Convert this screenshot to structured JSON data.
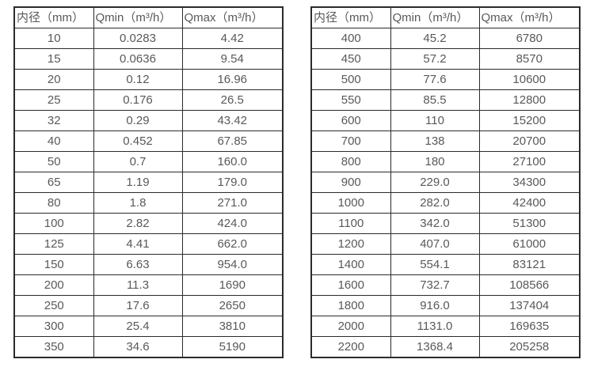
{
  "colors": {
    "background": "#ffffff",
    "border": "#2b2b2b",
    "text": "#595959"
  },
  "chart_data": [
    {
      "type": "table",
      "title": "",
      "columns": [
        "内径（mm）",
        "Qmin（m³/h）",
        "Qmax（m³/h）"
      ],
      "rows": [
        [
          "10",
          "0.0283",
          "4.42"
        ],
        [
          "15",
          "0.0636",
          "9.54"
        ],
        [
          "20",
          "0.12",
          "16.96"
        ],
        [
          "25",
          "0.176",
          "26.5"
        ],
        [
          "32",
          "0.29",
          "43.42"
        ],
        [
          "40",
          "0.452",
          "67.85"
        ],
        [
          "50",
          "0.7",
          "160.0"
        ],
        [
          "65",
          "1.19",
          "179.0"
        ],
        [
          "80",
          "1.8",
          "271.0"
        ],
        [
          "100",
          "2.82",
          "424.0"
        ],
        [
          "125",
          "4.41",
          "662.0"
        ],
        [
          "150",
          "6.63",
          "954.0"
        ],
        [
          "200",
          "11.3",
          "1690"
        ],
        [
          "250",
          "17.6",
          "2650"
        ],
        [
          "300",
          "25.4",
          "3810"
        ],
        [
          "350",
          "34.6",
          "5190"
        ]
      ]
    },
    {
      "type": "table",
      "title": "",
      "columns": [
        "内径（mm）",
        "Qmin（m³/h）",
        "Qmax（m³/h）"
      ],
      "rows": [
        [
          "400",
          "45.2",
          "6780"
        ],
        [
          "450",
          "57.2",
          "8570"
        ],
        [
          "500",
          "77.6",
          "10600"
        ],
        [
          "550",
          "85.5",
          "12800"
        ],
        [
          "600",
          "110",
          "15200"
        ],
        [
          "700",
          "138",
          "20700"
        ],
        [
          "800",
          "180",
          "27100"
        ],
        [
          "900",
          "229.0",
          "34300"
        ],
        [
          "1000",
          "282.0",
          "42400"
        ],
        [
          "1100",
          "342.0",
          "51300"
        ],
        [
          "1200",
          "407.0",
          "61000"
        ],
        [
          "1400",
          "554.1",
          "83121"
        ],
        [
          "1600",
          "732.7",
          "108566"
        ],
        [
          "1800",
          "916.0",
          "137404"
        ],
        [
          "2000",
          "1131.0",
          "169635"
        ],
        [
          "2200",
          "1368.4",
          "205258"
        ]
      ]
    }
  ]
}
